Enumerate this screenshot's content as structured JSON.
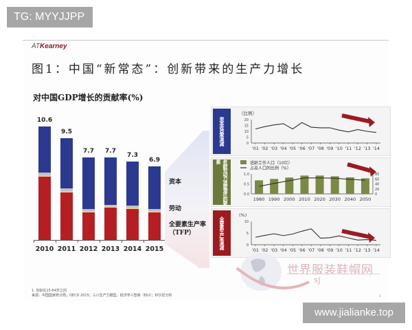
{
  "overlay": {
    "top_tag": "TG: MYYJJPP",
    "bottom_tag": "www.jialianke.top"
  },
  "header": {
    "brand_prefix": "AT",
    "brand_name": "Kearney",
    "figure_title": "图1：中国“新常态”：创新带来的生产力增长"
  },
  "watermark": {
    "text": "世界服装鞋帽网",
    "sub": "sj"
  },
  "footnotes": {
    "note1": "1. 年龄在15-64岁之间",
    "source": "来源：中国国家统计局；OECD 2015；三川生产力模型，经济学人智库（EIU）；科尔尼分析"
  },
  "page_number": "1",
  "colors": {
    "capital": "#2b3990",
    "labor": "#c0c0c0",
    "tfp": "#b51f24",
    "panel1_side": "#2b3990",
    "panel2_side": "#6b7a3a",
    "panel3_side": "#9b1b20",
    "arrow": "#9b1b20",
    "bar_green": "#7a8a45"
  },
  "chart_data": [
    {
      "type": "bar",
      "stacked": true,
      "title": "对中国GDP增长的贡献率(%)",
      "categories": [
        "2010",
        "2011",
        "2012",
        "2013",
        "2014",
        "2015"
      ],
      "totals": [
        10.6,
        9.5,
        7.7,
        7.7,
        7.3,
        6.9
      ],
      "total_labels": [
        "10.6",
        "9.5",
        "7.7",
        "7.7",
        "7.3",
        "6.9"
      ],
      "series": [
        {
          "name": "全要素生产率（TFP）",
          "values": [
            5.9,
            4.4,
            2.6,
            3.0,
            2.9,
            2.6
          ]
        },
        {
          "name": "劳动",
          "values": [
            0.4,
            0.4,
            0.3,
            0.3,
            0.3,
            0.3
          ]
        },
        {
          "name": "资本",
          "values": [
            4.3,
            4.7,
            4.8,
            4.4,
            4.1,
            4.0
          ]
        }
      ],
      "legend": [
        "资本",
        "劳动",
        "全要素生产率（TFP）"
      ],
      "legend_position": "right",
      "grid": false
    },
    {
      "type": "line",
      "title": "资本收益率递减",
      "unit_label": "（比例）",
      "x": [
        "'01",
        "'02",
        "'03",
        "'04",
        "'05",
        "'06",
        "'07",
        "'08",
        "'09",
        "'10",
        "'11",
        "'12",
        "'13",
        "'14"
      ],
      "values": [
        12,
        14,
        15.5,
        16.5,
        12,
        17.5,
        13.5,
        13,
        13,
        11,
        9.5,
        11.5,
        10,
        9
      ],
      "ylim": [
        0,
        20
      ],
      "yticks": [
        "0",
        "5",
        "10",
        "15",
        "20"
      ],
      "annotation": "downward trend arrow"
    },
    {
      "type": "bar",
      "title": "老龄劳动力浪费潜在的要素",
      "x": [
        "1980",
        "1990",
        "2000",
        "2010",
        "2020",
        "2030",
        "2040",
        "2050"
      ],
      "series": [
        {
          "name": "适龄工作人口（10亿）",
          "type": "bar",
          "axis": "left",
          "values": [
            0.68,
            0.75,
            0.82,
            0.92,
            0.92,
            0.88,
            0.83,
            0.78
          ]
        },
        {
          "name": "占总人口的比例（%）",
          "type": "line",
          "axis": "right",
          "values": [
            30,
            42,
            53,
            64,
            64,
            63,
            58,
            55
          ]
        }
      ],
      "ylim_left": [
        0.0,
        1.0
      ],
      "yticks_left": [
        "0.0",
        "0.5",
        "1.0"
      ],
      "ylim_right": [
        0,
        80
      ],
      "yticks_right": [
        "0",
        "20",
        "40",
        "60",
        "80"
      ],
      "annotation": "downward trend arrow"
    },
    {
      "type": "line",
      "title": "全要素生产率递减",
      "unit_label": "(%)",
      "x": [
        "'01",
        "'02",
        "'03",
        "'04",
        "'05",
        "'06",
        "'07",
        "'08",
        "'09",
        "'10",
        "'11",
        "'12",
        "'13",
        "'14"
      ],
      "values": [
        3.2,
        4.0,
        4.7,
        3.9,
        4.6,
        5.8,
        6.8,
        2.8,
        3.0,
        3.8,
        2.9,
        2.0,
        2.2,
        1.9
      ],
      "ylim": [
        0,
        10
      ],
      "yticks": [
        "0",
        "5",
        "10"
      ],
      "annotation": "downward trend arrow"
    }
  ]
}
